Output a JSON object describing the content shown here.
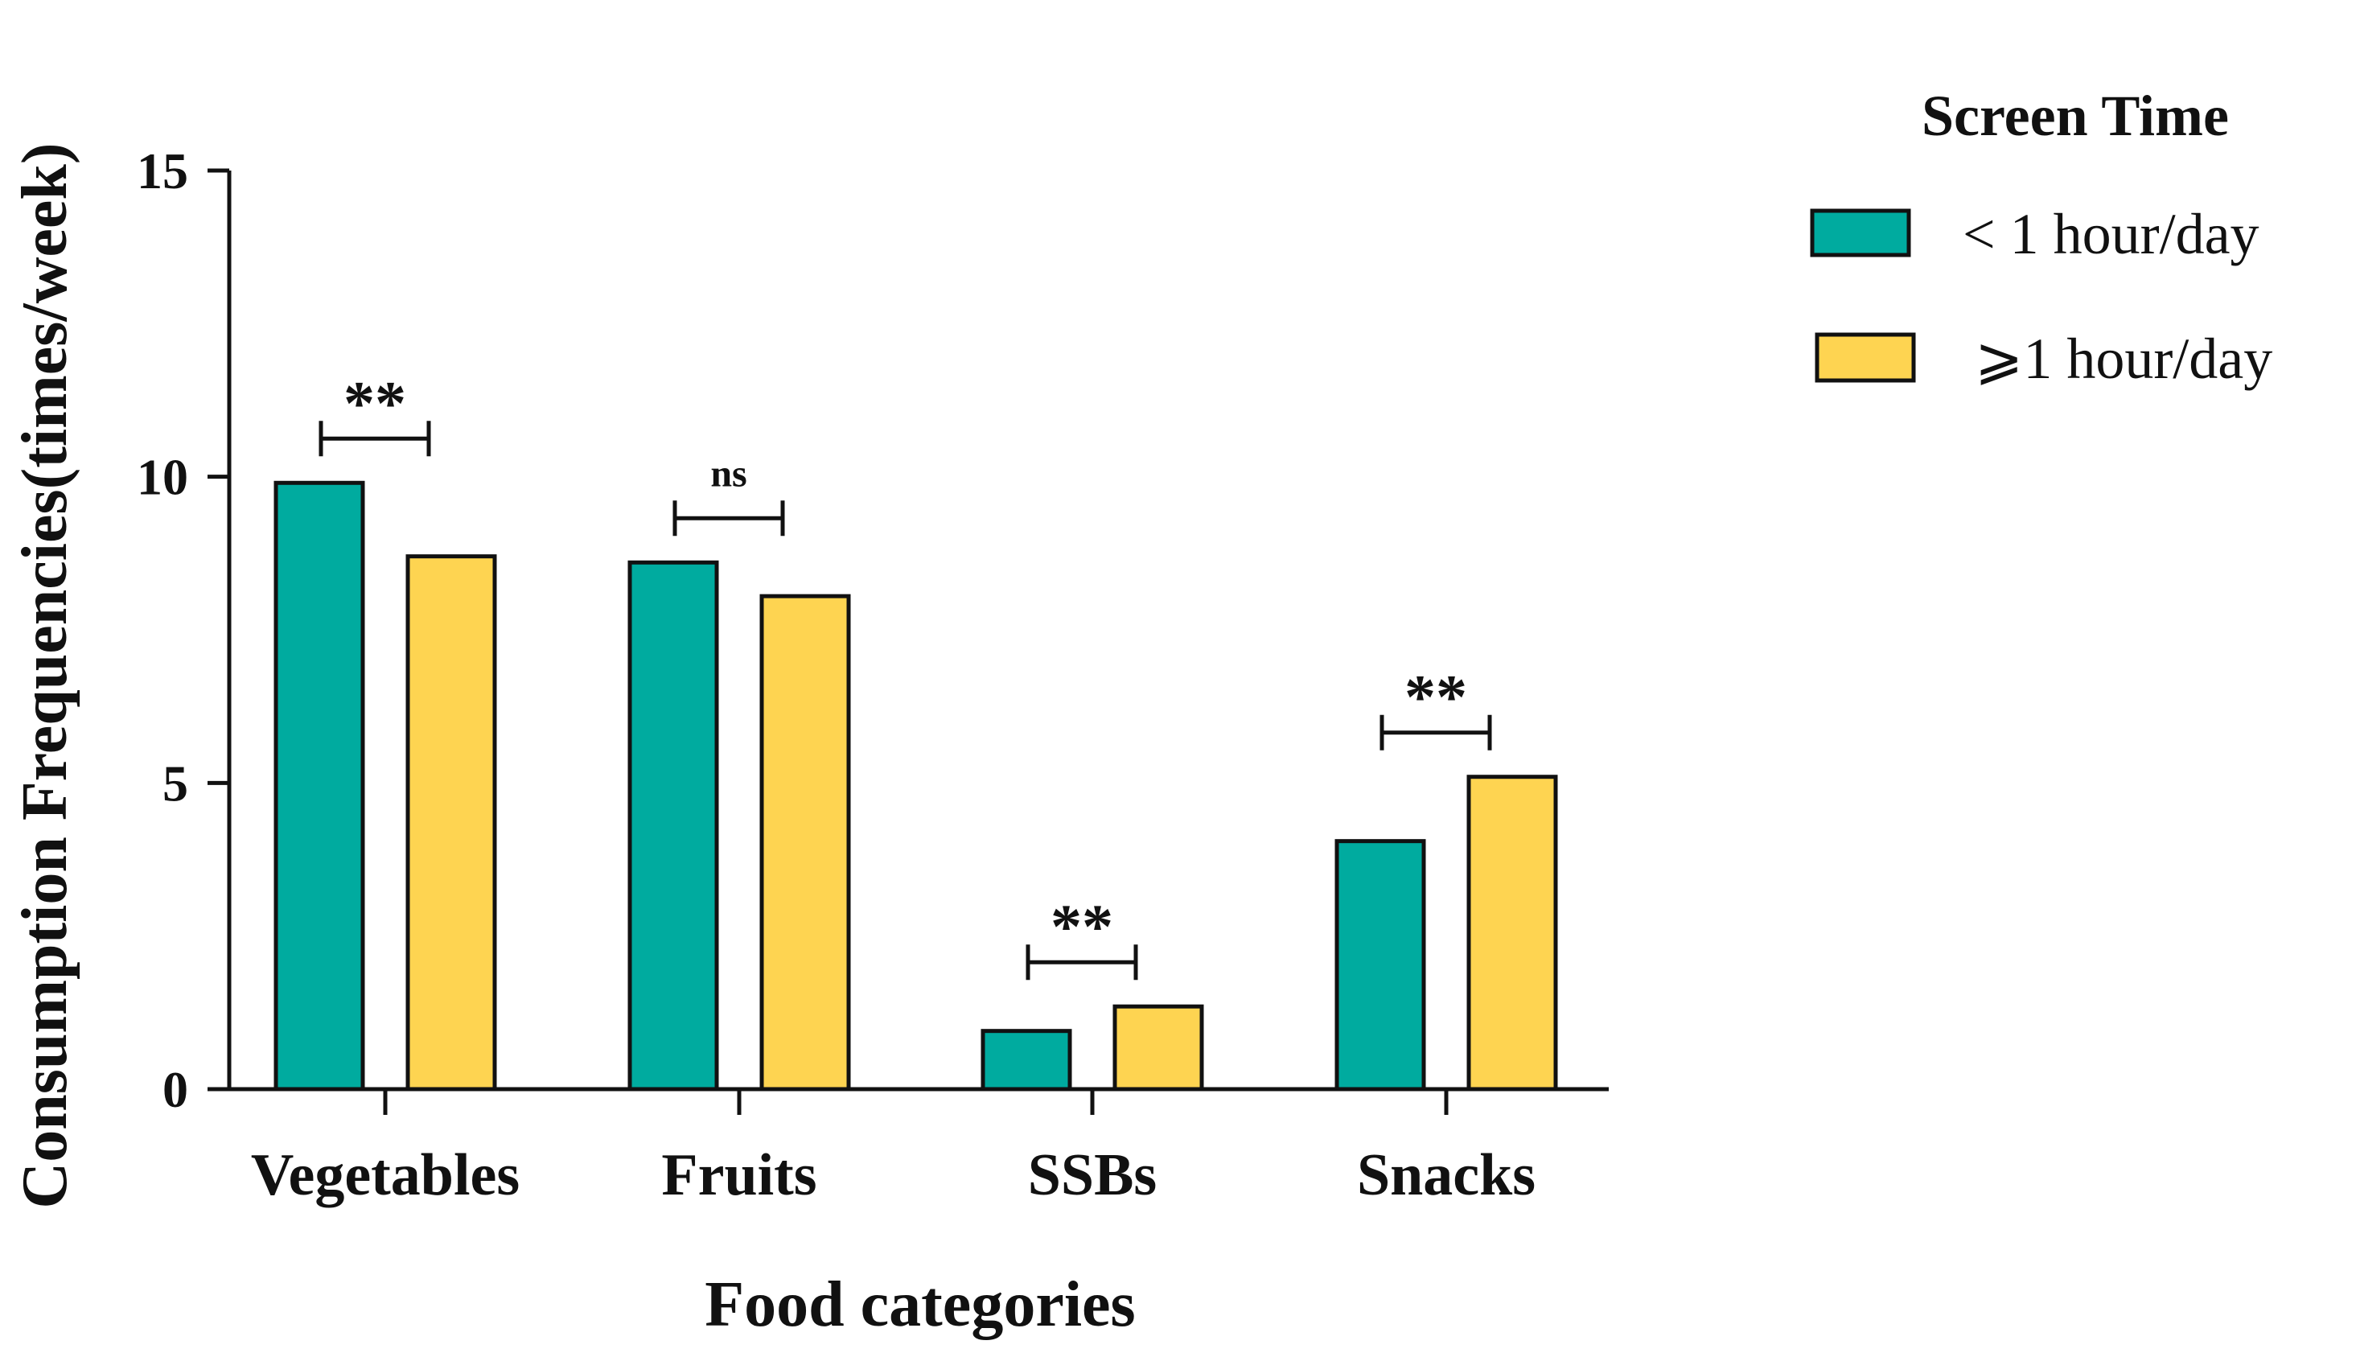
{
  "chart_data": {
    "type": "bar",
    "title": "",
    "xlabel": "Food categories",
    "ylabel": "Consumption Frequencies(times/week)",
    "ylim": [
      0,
      15
    ],
    "yticks": [
      0,
      5,
      10,
      15
    ],
    "categories": [
      "Vegetables",
      "Fruits",
      "SSBs",
      "Snacks"
    ],
    "series": [
      {
        "name": "< 1 hour/day",
        "color": "#00ab9f",
        "values": [
          9.9,
          8.6,
          0.95,
          4.05
        ]
      },
      {
        "name": "⩾1 hour/day",
        "color": "#fed451",
        "values": [
          8.7,
          8.05,
          1.35,
          5.1
        ]
      }
    ],
    "significance": [
      "**",
      "ns",
      "**",
      "**"
    ],
    "legend": {
      "title": "Screen Time",
      "position": "top-right"
    },
    "grid": false
  }
}
